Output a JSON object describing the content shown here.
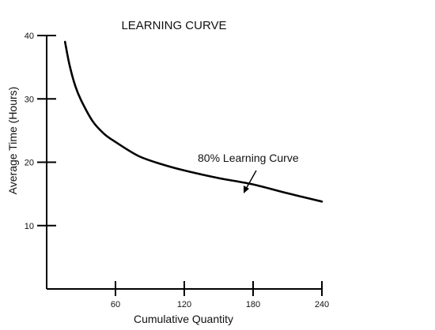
{
  "chart_data": {
    "type": "line",
    "title": "LEARNING CURVE",
    "xlabel": "Cumulative Quantity",
    "ylabel": "Average Time (Hours)",
    "xlim": [
      0,
      240
    ],
    "ylim": [
      0,
      40
    ],
    "x_ticks": [
      60,
      120,
      180,
      240
    ],
    "y_ticks": [
      10,
      20,
      30,
      40
    ],
    "grid": false,
    "series": [
      {
        "x": [
          16,
          20,
          25,
          30,
          40,
          50,
          60,
          80,
          100,
          120,
          150,
          180,
          210,
          240
        ],
        "y": [
          39.0,
          35.3,
          32.0,
          29.8,
          26.5,
          24.5,
          23.2,
          21.0,
          19.7,
          18.7,
          17.5,
          16.5,
          15.1,
          13.8
        ]
      }
    ],
    "annotations": [
      {
        "text": "80% Learning Curve",
        "arrow_to": {
          "x": 174,
          "y": 16.6
        }
      }
    ]
  }
}
